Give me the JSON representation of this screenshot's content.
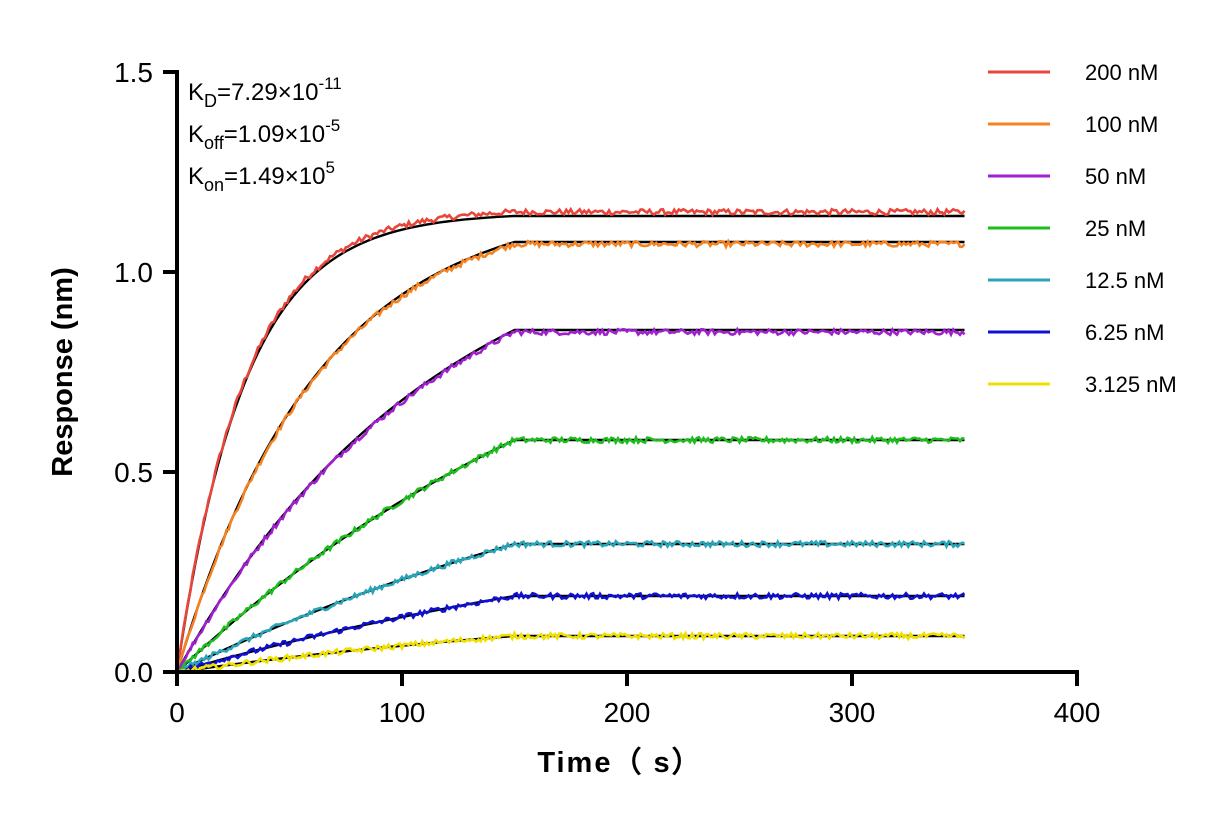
{
  "chart_data": {
    "type": "line",
    "xlabel": "Time（ s）",
    "ylabel": "Response (nm)",
    "xlim": [
      0,
      400
    ],
    "ylim": [
      0,
      1.5
    ],
    "xticks": [
      "0",
      "100",
      "200",
      "300",
      "400"
    ],
    "yticks": [
      "0.0",
      "0.5",
      "1.0",
      "1.5"
    ],
    "legend_position": "right",
    "grid": false,
    "association_end": 150,
    "x_end": 350,
    "annotations": {
      "kd": {
        "label": "K",
        "sub": "D",
        "value": "=7.29×10",
        "exp": "-11"
      },
      "koff": {
        "label": "K",
        "sub": "off",
        "value": "=1.09×10",
        "exp": "-5"
      },
      "kon": {
        "label": "K",
        "sub": "on",
        "value": "=1.49×10",
        "exp": "5"
      }
    },
    "series": [
      {
        "name": "200 nM",
        "color": "#e8463b",
        "plateau": 1.15,
        "fit_plateau": 1.14,
        "rate": 0.033
      },
      {
        "name": "100 nM",
        "color": "#f58220",
        "plateau": 1.07,
        "fit_plateau": 1.075,
        "rate": 0.016
      },
      {
        "name": "50 nM",
        "color": "#a020d0",
        "plateau": 0.85,
        "fit_plateau": 0.855,
        "rate": 0.0085
      },
      {
        "name": "25 nM",
        "color": "#1ebd1e",
        "plateau": 0.58,
        "fit_plateau": 0.58,
        "rate": 0.0045
      },
      {
        "name": "12.5 nM",
        "color": "#2aa5b8",
        "plateau": 0.32,
        "fit_plateau": 0.32,
        "rate": 0.0035
      },
      {
        "name": "6.25 nM",
        "color": "#1010d0",
        "plateau": 0.19,
        "fit_plateau": 0.19,
        "rate": 0.0035
      },
      {
        "name": "3.125 nM",
        "color": "#f0e000",
        "plateau": 0.09,
        "fit_plateau": 0.09,
        "rate": 0.004
      }
    ]
  }
}
